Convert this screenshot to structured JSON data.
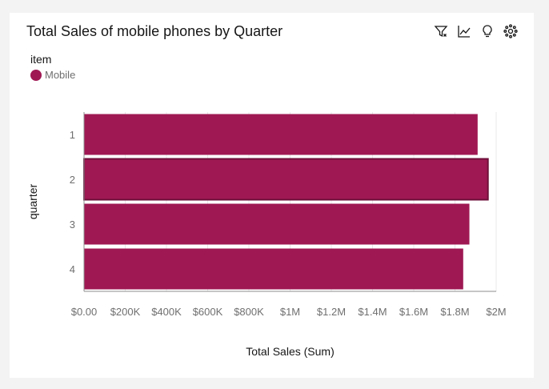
{
  "colors": {
    "series": "#9f1853",
    "series_highlight_border": "#6d0f38",
    "grid": "#e8e8e8",
    "axis": "#8d8d8d"
  },
  "card": {
    "title": "Total Sales of mobile phones by Quarter"
  },
  "toolbar": [
    {
      "icon": "filter-icon"
    },
    {
      "icon": "line-chart-icon"
    },
    {
      "icon": "lightbulb-icon"
    },
    {
      "icon": "settings-icon"
    }
  ],
  "legend": {
    "title": "item",
    "items": [
      {
        "label": "Mobile",
        "color": "#9f1853"
      }
    ]
  },
  "chart_data": {
    "type": "bar",
    "orientation": "horizontal",
    "categories": [
      "1",
      "2",
      "3",
      "4"
    ],
    "series": [
      {
        "name": "Mobile",
        "values": [
          1910000,
          1960000,
          1870000,
          1840000
        ]
      }
    ],
    "highlighted_category": "2",
    "xlabel": "Total Sales (Sum)",
    "ylabel": "quarter",
    "xlim": [
      0,
      2000000
    ],
    "xticks": [
      0,
      200000,
      400000,
      600000,
      800000,
      1000000,
      1200000,
      1400000,
      1600000,
      1800000,
      2000000
    ],
    "xtick_labels": [
      "$0.00",
      "$200K",
      "$400K",
      "$600K",
      "$800K",
      "$1M",
      "$1.2M",
      "$1.4M",
      "$1.6M",
      "$1.8M",
      "$2M"
    ],
    "grid": true,
    "legend_position": "top-left"
  }
}
